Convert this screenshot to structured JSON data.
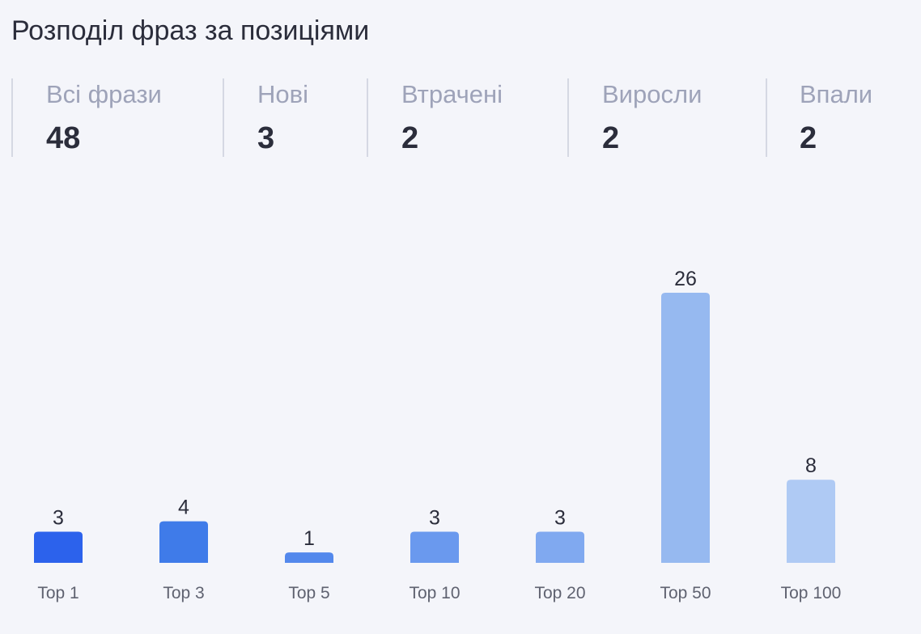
{
  "title": "Розподіл фраз за позиціями",
  "stats": [
    {
      "label": "Всі фрази",
      "value": "48"
    },
    {
      "label": "Нові",
      "value": "3"
    },
    {
      "label": "Втрачені",
      "value": "2"
    },
    {
      "label": "Виросли",
      "value": "2"
    },
    {
      "label": "Впали",
      "value": "2"
    }
  ],
  "chart_data": {
    "type": "bar",
    "categories": [
      "Top 1",
      "Top 3",
      "Top 5",
      "Top 10",
      "Top 20",
      "Top 50",
      "Top 100"
    ],
    "values": [
      3,
      4,
      1,
      3,
      3,
      26,
      8
    ],
    "colors": [
      "#2c62ec",
      "#3f7be9",
      "#5388ec",
      "#6a99ee",
      "#80a9f0",
      "#96b9f0",
      "#afcaf4"
    ],
    "title": "",
    "xlabel": "",
    "ylabel": "",
    "ylim": [
      0,
      26
    ],
    "grid": false
  }
}
